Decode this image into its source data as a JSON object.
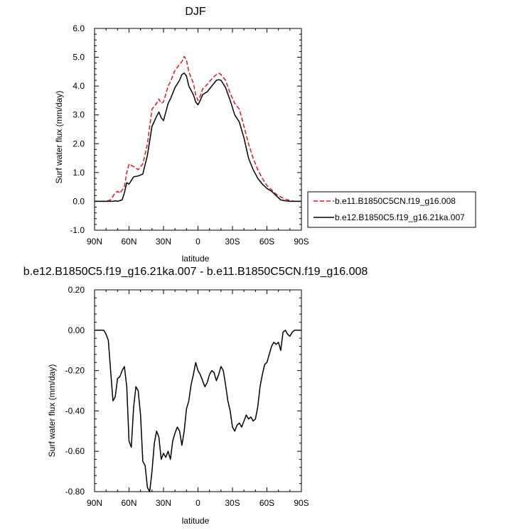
{
  "chart_data": [
    {
      "type": "line",
      "title": "DJF",
      "xlabel": "latitude",
      "ylabel": "Surf water flux (mm/day)",
      "xlim": [
        90,
        -90
      ],
      "ylim": [
        -1.0,
        6.0
      ],
      "xticks": [
        90,
        60,
        30,
        0,
        -30,
        -60,
        -90
      ],
      "xtick_labels": [
        "90N",
        "60N",
        "30N",
        "0",
        "30S",
        "60S",
        "90S"
      ],
      "yticks": [
        -1.0,
        0.0,
        1.0,
        2.0,
        3.0,
        4.0,
        5.0,
        6.0
      ],
      "ytick_labels": [
        "-1.0",
        "0.0",
        "1.0",
        "2.0",
        "3.0",
        "4.0",
        "5.0",
        "6.0"
      ],
      "grid": false,
      "legend": "right",
      "series": [
        {
          "name": "b.e11.B1850C5CN.f19_g16.008",
          "color": "#e8141c",
          "dash": "dashed",
          "x": [
            90,
            80,
            76,
            72,
            70,
            68,
            64,
            62,
            60,
            56,
            52,
            48,
            44,
            40,
            36,
            34,
            32,
            30,
            26,
            24,
            20,
            16,
            14,
            12,
            10,
            8,
            4,
            2,
            0,
            -2,
            -4,
            -8,
            -12,
            -16,
            -18,
            -20,
            -24,
            -28,
            -32,
            -36,
            -40,
            -44,
            -48,
            -52,
            -56,
            -60,
            -64,
            -68,
            -72,
            -76,
            -80,
            -84,
            -90
          ],
          "y": [
            0.0,
            0.0,
            0.05,
            0.3,
            0.35,
            0.28,
            0.5,
            1.0,
            1.3,
            1.2,
            1.1,
            1.3,
            2.0,
            3.2,
            3.4,
            3.55,
            3.4,
            3.45,
            4.0,
            4.15,
            4.55,
            4.75,
            4.85,
            5.03,
            4.9,
            4.5,
            4.1,
            3.7,
            3.5,
            3.65,
            3.9,
            4.05,
            4.25,
            4.4,
            4.45,
            4.4,
            4.2,
            3.75,
            3.4,
            3.2,
            2.6,
            2.0,
            1.5,
            1.1,
            0.8,
            0.55,
            0.4,
            0.25,
            0.15,
            0.08,
            0.03,
            0.0,
            0.0
          ]
        },
        {
          "name": "b.e12.B1850C5.f19_g16.21ka.007",
          "color": "#000000",
          "dash": "solid",
          "x": [
            90,
            80,
            74,
            72,
            70,
            66,
            64,
            62,
            60,
            56,
            52,
            48,
            44,
            40,
            36,
            34,
            32,
            30,
            26,
            24,
            20,
            16,
            14,
            12,
            10,
            8,
            4,
            2,
            0,
            -2,
            -4,
            -8,
            -12,
            -16,
            -18,
            -20,
            -24,
            -28,
            -32,
            -36,
            -40,
            -44,
            -48,
            -52,
            -56,
            -60,
            -64,
            -68,
            -72,
            -76,
            -80,
            -84,
            -90
          ],
          "y": [
            0.0,
            0.0,
            0.0,
            0.02,
            0.0,
            0.05,
            0.3,
            0.65,
            0.6,
            0.85,
            0.88,
            0.95,
            1.6,
            2.6,
            2.95,
            3.1,
            2.9,
            2.8,
            3.4,
            3.55,
            3.95,
            4.2,
            4.4,
            4.45,
            4.35,
            4.0,
            3.7,
            3.45,
            3.35,
            3.5,
            3.7,
            3.8,
            4.0,
            4.2,
            4.22,
            4.2,
            3.95,
            3.5,
            3.0,
            2.75,
            2.2,
            1.5,
            1.1,
            0.8,
            0.6,
            0.45,
            0.35,
            0.2,
            0.05,
            0.02,
            0.0,
            0.0,
            0.0
          ]
        }
      ]
    },
    {
      "type": "line",
      "title": "b.e12.B1850C5.f19_g16.21ka.007 - b.e11.B1850C5CN.f19_g16.008",
      "xlabel": "latitude",
      "ylabel": "Surf water flux (mm/day)",
      "xlim": [
        90,
        -90
      ],
      "ylim": [
        -0.8,
        0.2
      ],
      "xticks": [
        90,
        60,
        30,
        0,
        -30,
        -60,
        -90
      ],
      "xtick_labels": [
        "90N",
        "60N",
        "30N",
        "0",
        "30S",
        "60S",
        "90S"
      ],
      "yticks": [
        -0.8,
        -0.6,
        -0.4,
        -0.2,
        0.0,
        0.2
      ],
      "ytick_labels": [
        "-0.80",
        "-0.60",
        "-0.40",
        "-0.20",
        "0.00",
        "0.20"
      ],
      "grid": false,
      "series": [
        {
          "color": "#000000",
          "dash": "solid",
          "x": [
            90,
            82,
            80,
            78,
            76,
            74,
            72,
            70,
            68,
            66,
            64,
            62,
            60,
            58,
            56,
            54,
            52,
            50,
            48,
            46,
            44,
            42,
            40,
            38,
            36,
            34,
            32,
            30,
            28,
            26,
            24,
            22,
            20,
            18,
            16,
            14,
            12,
            10,
            8,
            6,
            4,
            2,
            0,
            -2,
            -4,
            -6,
            -8,
            -10,
            -12,
            -14,
            -16,
            -18,
            -20,
            -22,
            -24,
            -26,
            -28,
            -30,
            -32,
            -34,
            -36,
            -38,
            -40,
            -42,
            -44,
            -46,
            -48,
            -50,
            -52,
            -54,
            -56,
            -58,
            -60,
            -62,
            -64,
            -66,
            -68,
            -70,
            -72,
            -74,
            -76,
            -78,
            -80,
            -82,
            -84,
            -86,
            -88,
            -90
          ],
          "y": [
            0.0,
            0.0,
            -0.02,
            -0.05,
            -0.2,
            -0.35,
            -0.33,
            -0.24,
            -0.23,
            -0.2,
            -0.18,
            -0.28,
            -0.55,
            -0.58,
            -0.38,
            -0.28,
            -0.3,
            -0.42,
            -0.65,
            -0.67,
            -0.78,
            -0.8,
            -0.7,
            -0.56,
            -0.5,
            -0.53,
            -0.64,
            -0.61,
            -0.63,
            -0.6,
            -0.64,
            -0.55,
            -0.51,
            -0.48,
            -0.5,
            -0.57,
            -0.5,
            -0.39,
            -0.35,
            -0.27,
            -0.22,
            -0.16,
            -0.2,
            -0.22,
            -0.25,
            -0.28,
            -0.26,
            -0.22,
            -0.2,
            -0.21,
            -0.25,
            -0.22,
            -0.18,
            -0.2,
            -0.27,
            -0.35,
            -0.4,
            -0.48,
            -0.5,
            -0.47,
            -0.46,
            -0.48,
            -0.45,
            -0.42,
            -0.44,
            -0.43,
            -0.45,
            -0.44,
            -0.38,
            -0.28,
            -0.22,
            -0.17,
            -0.16,
            -0.12,
            -0.08,
            -0.06,
            -0.07,
            -0.06,
            -0.1,
            -0.01,
            0.0,
            -0.02,
            -0.03,
            -0.01,
            0.0,
            0.0,
            0.0,
            0.0
          ]
        }
      ]
    }
  ]
}
